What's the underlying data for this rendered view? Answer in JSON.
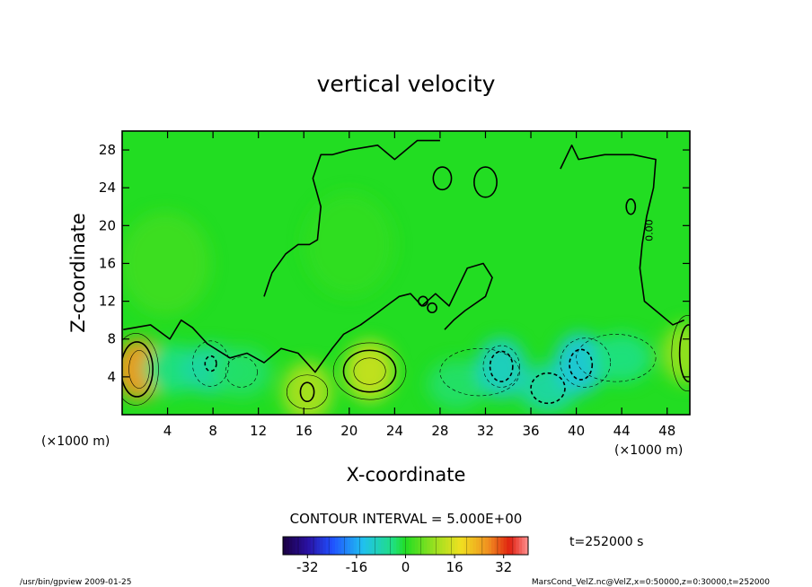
{
  "chart_data": {
    "type": "heatmap",
    "title": "vertical velocity",
    "xlabel": "X-coordinate",
    "ylabel": "Z-coordinate",
    "x_unit_left": "(×1000 m)",
    "x_unit_right": "(×1000 m)",
    "xlim": [
      0,
      50
    ],
    "ylim": [
      0,
      30
    ],
    "x_ticks": [
      "4",
      "8",
      "12",
      "16",
      "20",
      "24",
      "28",
      "32",
      "36",
      "40",
      "44",
      "48"
    ],
    "x_tick_values": [
      4,
      8,
      12,
      16,
      20,
      24,
      28,
      32,
      36,
      40,
      44,
      48
    ],
    "y_ticks": [
      "4",
      "8",
      "12",
      "16",
      "20",
      "24",
      "28"
    ],
    "y_tick_values": [
      4,
      8,
      12,
      16,
      20,
      24,
      28
    ],
    "contour_interval_text": "CONTOUR INTERVAL = 5.000E+00",
    "time_label": "t=252000 s",
    "contour_label": "0.00",
    "colorbar": {
      "range": [
        -40,
        40
      ],
      "tick_labels": [
        "-32",
        "-16",
        "0",
        "16",
        "32"
      ],
      "tick_values": [
        -32,
        -16,
        0,
        16,
        32
      ]
    },
    "features": [
      {
        "x": 1.5,
        "z": 4.8,
        "value": 26
      },
      {
        "x": 4.5,
        "z": 4.8,
        "value": -4
      },
      {
        "x": 7.8,
        "z": 4.8,
        "value": -7
      },
      {
        "x": 10.5,
        "z": 4.5,
        "value": -3
      },
      {
        "x": 16.3,
        "z": 2.4,
        "value": 11
      },
      {
        "x": 21.8,
        "z": 4.6,
        "value": 14
      },
      {
        "x": 29.5,
        "z": 3.2,
        "value": -3
      },
      {
        "x": 33.4,
        "z": 4.9,
        "value": -10
      },
      {
        "x": 37.5,
        "z": 2.8,
        "value": -7
      },
      {
        "x": 40.3,
        "z": 5.4,
        "value": -12
      },
      {
        "x": 44.0,
        "z": 6.0,
        "value": -4
      },
      {
        "x": 49.7,
        "z": 6.5,
        "value": 9
      },
      {
        "x": 3.8,
        "z": 16.0,
        "value": 4
      },
      {
        "x": 20.0,
        "z": 18.0,
        "value": 2
      }
    ]
  },
  "footer": {
    "left": "/usr/bin/gpview  2009-01-25",
    "right": "MarsCond_VelZ.nc@VelZ,x=0:50000,z=0:30000,t=252000"
  },
  "colors": {
    "background": "#ffffff",
    "frame": "#000000",
    "zero_field": "#22dd22"
  }
}
